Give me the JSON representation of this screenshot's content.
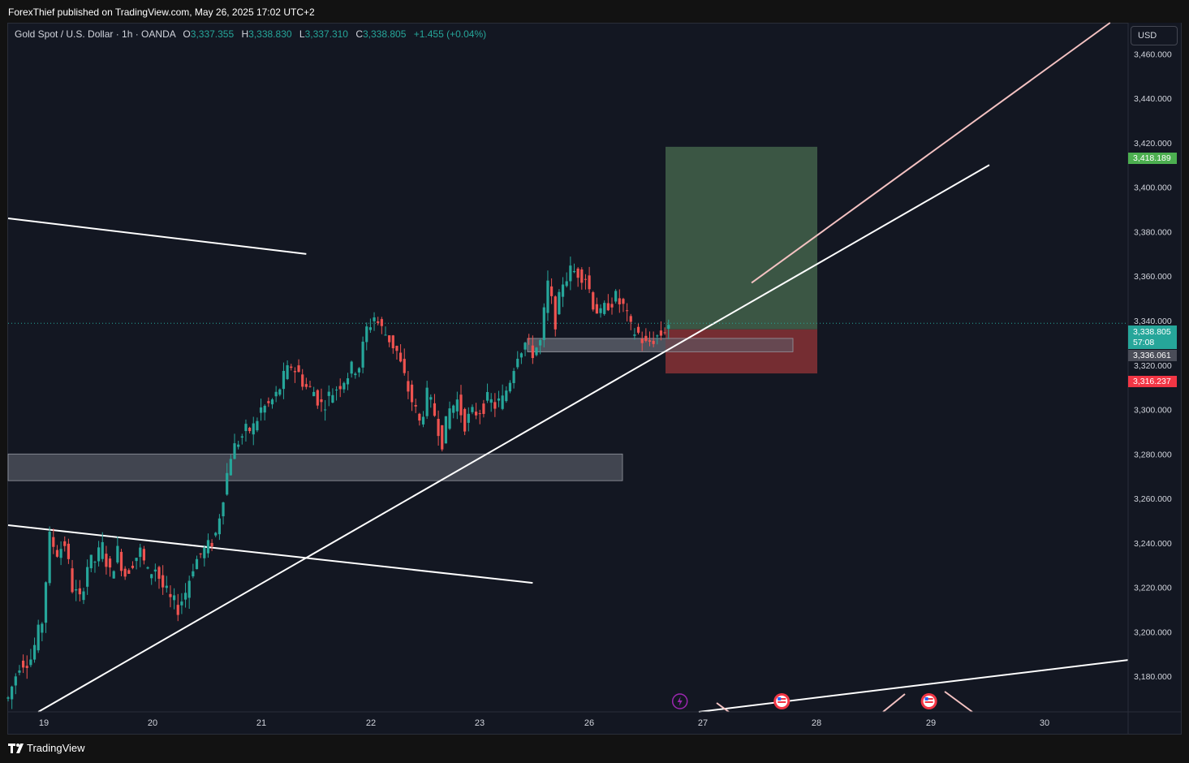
{
  "header": {
    "publisher_line": "ForexThief published on TradingView.com, May 26, 2025 17:02 UTC+2"
  },
  "legend": {
    "symbol": "Gold Spot / U.S. Dollar · 1h · OANDA",
    "open_label": "O",
    "open": "3,337.355",
    "high_label": "H",
    "high": "3,338.830",
    "low_label": "L",
    "low": "3,337.310",
    "close_label": "C",
    "close": "3,338.805",
    "change": "+1.455 (+0.04%)"
  },
  "currency": "USD",
  "price_tags": {
    "target": "3,418.189",
    "last": "3,338.805",
    "countdown": "57:08",
    "entry": "3,336.061",
    "stop": "3,316.237"
  },
  "footer": {
    "brand": "TradingView"
  },
  "colors": {
    "background": "#131722",
    "up": "#26a69a",
    "down": "#ef5350",
    "profit_zone": "#3d5a47",
    "loss_zone": "#7a2e34",
    "zone": "#4a4d58",
    "trend_line": "#ffffff",
    "target_line": "#f4c2c2"
  },
  "chart_data": {
    "type": "candlestick",
    "symbol": "XAUUSD",
    "timeframe": "1h",
    "x_axis": {
      "tick_labels": [
        "19",
        "20",
        "21",
        "22",
        "23",
        "26",
        "27",
        "28",
        "29",
        "30"
      ]
    },
    "y_axis": {
      "range": [
        3164,
        3474
      ],
      "tick_labels": [
        "3,460.000",
        "3,440.000",
        "3,420.000",
        "3,400.000",
        "3,380.000",
        "3,360.000",
        "3,340.000",
        "3,320.000",
        "3,300.000",
        "3,280.000",
        "3,260.000",
        "3,240.000",
        "3,220.000",
        "3,200.000",
        "3,180.000"
      ],
      "ticks": [
        3460,
        3440,
        3420,
        3400,
        3380,
        3360,
        3340,
        3320,
        3300,
        3280,
        3260,
        3240,
        3220,
        3200,
        3180
      ]
    },
    "grid": false,
    "last_price": 3338.805,
    "price_path": [
      [
        0,
        3170
      ],
      [
        3,
        3186
      ],
      [
        6,
        3188
      ],
      [
        9,
        3205
      ],
      [
        11,
        3242
      ],
      [
        13,
        3236
      ],
      [
        15,
        3240
      ],
      [
        17,
        3220
      ],
      [
        19,
        3214
      ],
      [
        21,
        3230
      ],
      [
        23,
        3232
      ],
      [
        25,
        3238
      ],
      [
        27,
        3226
      ],
      [
        29,
        3236
      ],
      [
        31,
        3226
      ],
      [
        33,
        3232
      ],
      [
        35,
        3236
      ],
      [
        37,
        3226
      ],
      [
        39,
        3229
      ],
      [
        41,
        3220
      ],
      [
        43,
        3214
      ],
      [
        45,
        3211
      ],
      [
        47,
        3218
      ],
      [
        49,
        3230
      ],
      [
        51,
        3235
      ],
      [
        53,
        3238
      ],
      [
        55,
        3244
      ],
      [
        57,
        3262
      ],
      [
        59,
        3280
      ],
      [
        61,
        3286
      ],
      [
        63,
        3290
      ],
      [
        65,
        3292
      ],
      [
        67,
        3300
      ],
      [
        69,
        3302
      ],
      [
        71,
        3306
      ],
      [
        73,
        3314
      ],
      [
        75,
        3320
      ],
      [
        77,
        3316
      ],
      [
        79,
        3310
      ],
      [
        81,
        3308
      ],
      [
        83,
        3302
      ],
      [
        85,
        3306
      ],
      [
        87,
        3310
      ],
      [
        89,
        3314
      ],
      [
        91,
        3318
      ],
      [
        93,
        3320
      ],
      [
        95,
        3336
      ],
      [
        97,
        3342
      ],
      [
        99,
        3336
      ],
      [
        101,
        3332
      ],
      [
        103,
        3326
      ],
      [
        105,
        3314
      ],
      [
        107,
        3304
      ],
      [
        109,
        3294
      ],
      [
        111,
        3306
      ],
      [
        113,
        3298
      ],
      [
        115,
        3286
      ],
      [
        117,
        3300
      ],
      [
        119,
        3304
      ],
      [
        121,
        3294
      ],
      [
        123,
        3298
      ],
      [
        125,
        3300
      ],
      [
        127,
        3304
      ],
      [
        129,
        3302
      ],
      [
        131,
        3304
      ],
      [
        133,
        3314
      ],
      [
        135,
        3326
      ],
      [
        137,
        3330
      ],
      [
        139,
        3326
      ],
      [
        141,
        3330
      ],
      [
        143,
        3356
      ],
      [
        145,
        3340
      ],
      [
        147,
        3358
      ],
      [
        149,
        3362
      ],
      [
        151,
        3362
      ],
      [
        153,
        3360
      ],
      [
        155,
        3348
      ],
      [
        157,
        3342
      ],
      [
        159,
        3348
      ],
      [
        161,
        3350
      ],
      [
        163,
        3346
      ],
      [
        165,
        3336
      ],
      [
        167,
        3334
      ],
      [
        169,
        3329
      ],
      [
        171,
        3332
      ],
      [
        173,
        3334
      ],
      [
        175,
        3338.8
      ]
    ],
    "long_position": {
      "target": 3418.189,
      "entry": 3336.061,
      "stop": 3316.237
    },
    "zones": [
      {
        "top": 3280,
        "bottom": 3268
      },
      {
        "top": 3332,
        "bottom": 3326
      }
    ],
    "trend_lines": [
      {
        "from": [
          0,
          3386
        ],
        "to": [
          79,
          3370
        ]
      },
      {
        "from": [
          0,
          3248
        ],
        "to": [
          139,
          3222
        ]
      },
      {
        "from": [
          8,
          3164
        ],
        "to": [
          260,
          3410
        ]
      },
      {
        "from": [
          197,
          3357
        ],
        "to": [
          292,
          3474
        ]
      },
      {
        "from": [
          183,
          3164
        ],
        "to": [
          300,
          3188
        ]
      }
    ],
    "event_markers": [
      {
        "kind": "lightning",
        "x": 178
      },
      {
        "kind": "us-flag",
        "x": 205
      },
      {
        "kind": "us-flag",
        "x": 244
      }
    ]
  }
}
